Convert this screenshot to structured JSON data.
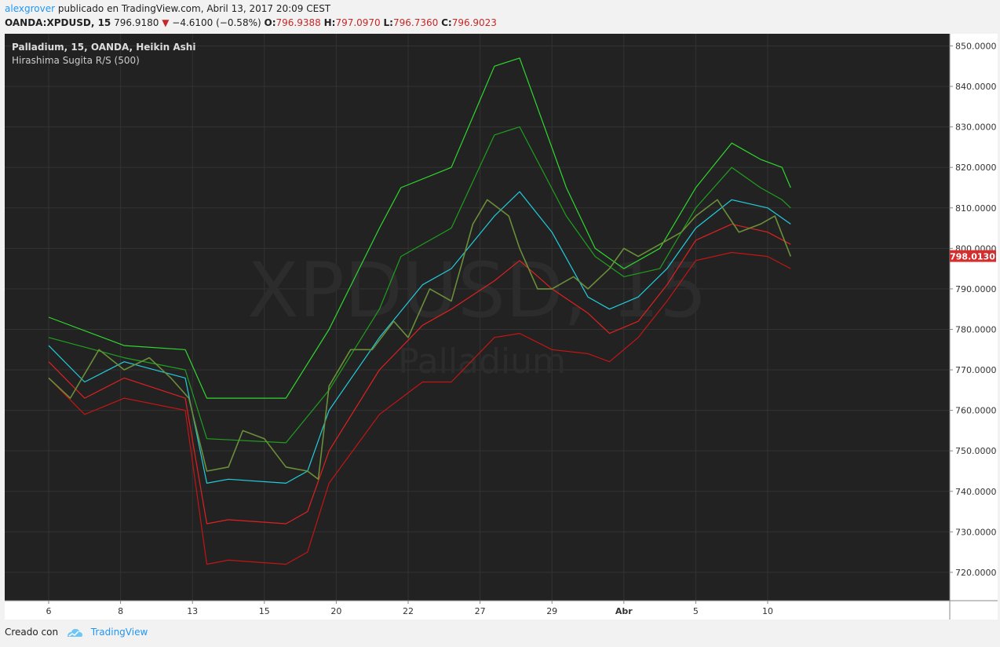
{
  "header": {
    "author": "alexgrover",
    "published_text": " publicado en TradingView.com, Abril 13, 2017 20:09 CEST",
    "symbol": "OANDA:XPDUSD, 15",
    "last_price": "796.9180",
    "change": "−4.6100 (−0.58%)",
    "open_label": "O:",
    "open": "796.9388",
    "high_label": "H:",
    "high": "797.0970",
    "low_label": "L:",
    "low": "796.7360",
    "close_label": "C:",
    "close": "796.9023"
  },
  "legend": {
    "title": "Palladium, 15, OANDA, Heikin Ashi",
    "indicator": "Hirashima Sugita R/S (500)"
  },
  "watermark": {
    "symbol": "XPDUSD, 15",
    "name": "Palladium"
  },
  "footer": {
    "created_with": "Creado con",
    "brand": "TradingView"
  },
  "colors": {
    "background": "#222222",
    "grid": "#333333",
    "green_outer": "#2fd82f",
    "green_inner": "#1ea01e",
    "cyan": "#22ccdd",
    "red_inner": "#e02020",
    "red_outer": "#c41515",
    "price_tag": "#d32f2f"
  },
  "chart_data": {
    "type": "line",
    "title": "Palladium, 15, OANDA, Heikin Ashi",
    "x": [
      "6",
      "8",
      "13",
      "15",
      "20",
      "22",
      "27",
      "29",
      "Abr",
      "5",
      "10"
    ],
    "ylim": [
      713,
      853
    ],
    "y_ticks": [
      "720.0000",
      "730.0000",
      "740.0000",
      "750.0000",
      "760.0000",
      "770.0000",
      "780.0000",
      "790.0000",
      "800.0000",
      "810.0000",
      "820.0000",
      "830.0000",
      "840.0000",
      "850.0000"
    ],
    "y_tick_values": [
      720,
      730,
      740,
      750,
      760,
      770,
      780,
      790,
      800,
      810,
      820,
      830,
      840,
      850
    ],
    "last_price_label": "798.0130",
    "last_price_value": 798.013,
    "grid": true,
    "series": [
      {
        "role": "outer-resistance",
        "color": "#2fd82f",
        "x": [
          0,
          1.05,
          1.9,
          2.2,
          3.3,
          3.9,
          4.6,
          4.9,
          5.6,
          6.2,
          6.55,
          7.2,
          7.6,
          8.0,
          8.5,
          9.0,
          9.5,
          9.9,
          10.2,
          10.32
        ],
        "values": [
          783,
          776,
          775,
          763,
          763,
          780,
          805,
          815,
          820,
          845,
          847,
          815,
          800,
          795,
          800,
          815,
          826,
          822,
          820,
          815
        ]
      },
      {
        "role": "inner-resistance",
        "color": "#1ea01e",
        "x": [
          0,
          1.05,
          1.9,
          2.2,
          3.3,
          3.9,
          4.6,
          4.9,
          5.6,
          6.2,
          6.55,
          7.2,
          7.6,
          8.0,
          8.5,
          9.0,
          9.5,
          9.9,
          10.2,
          10.32
        ],
        "values": [
          778,
          773,
          770,
          753,
          752,
          765,
          785,
          798,
          805,
          828,
          830,
          808,
          798,
          793,
          795,
          810,
          820,
          815,
          812,
          810
        ]
      },
      {
        "role": "basis",
        "color": "#22ccdd",
        "x": [
          0,
          0.5,
          1.05,
          1.9,
          2.2,
          2.5,
          3.3,
          3.6,
          3.9,
          4.6,
          5.2,
          5.6,
          6.2,
          6.55,
          7.0,
          7.5,
          7.8,
          8.2,
          8.6,
          9.0,
          9.5,
          10.0,
          10.32
        ],
        "values": [
          776,
          767,
          772,
          768,
          742,
          743,
          742,
          745,
          760,
          778,
          791,
          795,
          808,
          814,
          804,
          788,
          785,
          788,
          795,
          805,
          812,
          810,
          806
        ]
      },
      {
        "role": "inner-support",
        "color": "#e02020",
        "x": [
          0,
          0.5,
          1.05,
          1.9,
          2.2,
          2.5,
          3.3,
          3.6,
          3.9,
          4.6,
          5.2,
          5.6,
          6.2,
          6.55,
          7.0,
          7.5,
          7.8,
          8.2,
          8.6,
          9.0,
          9.5,
          10.0,
          10.32
        ],
        "values": [
          772,
          763,
          768,
          763,
          732,
          733,
          732,
          735,
          750,
          770,
          781,
          785,
          792,
          797,
          790,
          784,
          779,
          782,
          791,
          802,
          806,
          804,
          801
        ]
      },
      {
        "role": "outer-support",
        "color": "#c41515",
        "x": [
          0,
          0.5,
          1.05,
          1.9,
          2.2,
          2.5,
          3.3,
          3.6,
          3.9,
          4.6,
          5.2,
          5.6,
          6.2,
          6.55,
          7.0,
          7.5,
          7.8,
          8.2,
          8.6,
          9.0,
          9.5,
          10.0,
          10.32
        ],
        "values": [
          768,
          759,
          763,
          760,
          722,
          723,
          722,
          725,
          742,
          759,
          767,
          767,
          778,
          779,
          775,
          774,
          772,
          778,
          787,
          797,
          799,
          798,
          795
        ]
      },
      {
        "role": "price",
        "color": "#6b8e3a",
        "x": [
          0,
          0.3,
          0.7,
          1.05,
          1.4,
          1.7,
          1.95,
          2.2,
          2.5,
          2.7,
          3.0,
          3.3,
          3.6,
          3.75,
          3.9,
          4.2,
          4.5,
          4.8,
          5.0,
          5.3,
          5.6,
          5.9,
          6.1,
          6.4,
          6.55,
          6.8,
          7.0,
          7.3,
          7.5,
          7.8,
          8.0,
          8.2,
          8.5,
          8.8,
          9.0,
          9.3,
          9.6,
          9.9,
          10.1,
          10.32
        ],
        "values": [
          768,
          763,
          775,
          770,
          773,
          768,
          763,
          745,
          746,
          755,
          753,
          746,
          745,
          743,
          766,
          775,
          775,
          782,
          778,
          790,
          787,
          806,
          812,
          808,
          800,
          790,
          790,
          793,
          790,
          795,
          800,
          798,
          801,
          804,
          808,
          812,
          804,
          806,
          808,
          798
        ]
      }
    ]
  }
}
